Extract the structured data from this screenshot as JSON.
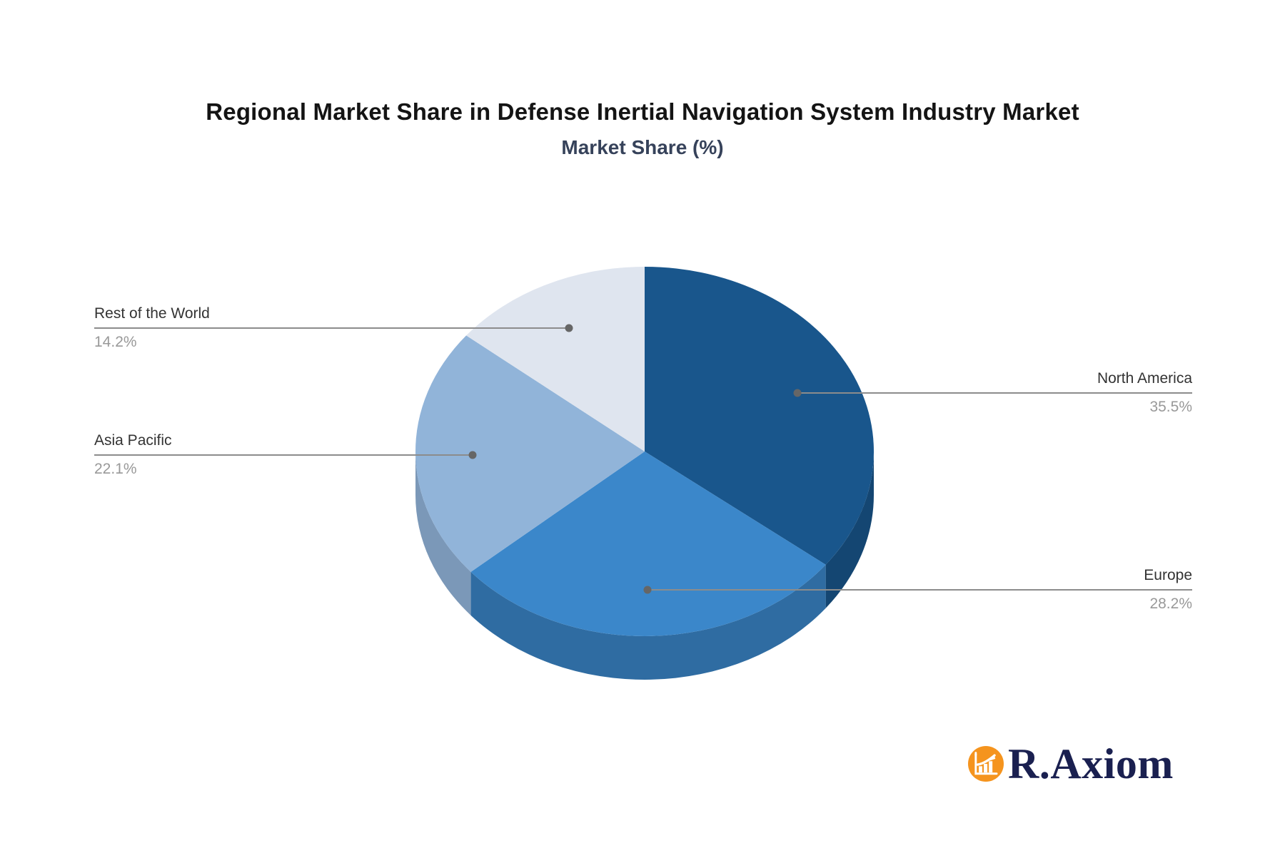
{
  "title": "Regional Market Share in Defense Inertial Navigation System Industry Market",
  "subtitle": "Market Share (%)",
  "chart_data": {
    "type": "pie",
    "style": "3d",
    "title": "Regional Market Share in Defense Inertial Navigation System Industry Market",
    "subtitle": "Market Share (%)",
    "unit": "%",
    "start_angle_deg": 90,
    "direction": "clockwise",
    "legend_position": "callout-labels",
    "slices": [
      {
        "label": "North America",
        "value": 35.5,
        "pct_label": "35.5%",
        "color": "#19568C",
        "side_color": "#144672"
      },
      {
        "label": "Europe",
        "value": 28.2,
        "pct_label": "28.2%",
        "color": "#3B87CA",
        "side_color": "#2F6CA2"
      },
      {
        "label": "Asia Pacific",
        "value": 22.1,
        "pct_label": "22.1%",
        "color": "#91B4D9",
        "side_color": "#7B98B8"
      },
      {
        "label": "Rest of the World",
        "value": 14.2,
        "pct_label": "14.2%",
        "color": "#DFE5EF",
        "side_color": "#BFC9D9"
      }
    ]
  },
  "logo": {
    "text": "R.Axiom",
    "icon": "bar-chart-growth-icon",
    "badge_color": "#F5941E",
    "text_color": "#1A2050"
  },
  "colors": {
    "background": "#FFFFFF",
    "title_text": "#141414",
    "subtitle_text": "#36425A",
    "callout_name_text": "#333333",
    "callout_pct_text": "#999999",
    "leader_line": "#8C8C8C",
    "leader_dot": "#666666"
  }
}
